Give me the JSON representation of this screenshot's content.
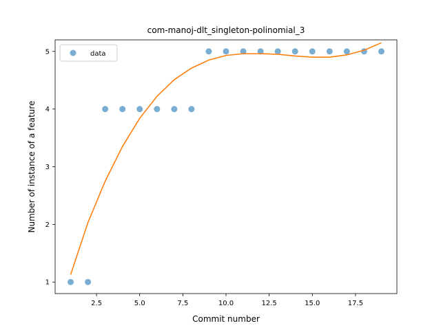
{
  "chart_data": {
    "type": "scatter",
    "title": "com-manoj-dlt_singleton-polinomial_3",
    "xlabel": "Commit number",
    "ylabel": "Number of instance of a feature",
    "xlim": [
      0.1,
      19.9
    ],
    "ylim": [
      0.8,
      5.2
    ],
    "xticks": [
      2.5,
      5.0,
      7.5,
      10.0,
      12.5,
      15.0,
      17.5
    ],
    "xtick_labels": [
      "2.5",
      "5.0",
      "7.5",
      "10.0",
      "12.5",
      "15.0",
      "17.5"
    ],
    "yticks": [
      1,
      2,
      3,
      4,
      5
    ],
    "ytick_labels": [
      "1",
      "2",
      "3",
      "4",
      "5"
    ],
    "grid": false,
    "legend": {
      "position": "top-left",
      "entries": [
        "data"
      ]
    },
    "series": [
      {
        "name": "data",
        "kind": "scatter",
        "color": "#1f77b4",
        "x": [
          1,
          2,
          3,
          4,
          5,
          6,
          7,
          8,
          9,
          10,
          11,
          12,
          13,
          14,
          15,
          16,
          17,
          18,
          19
        ],
        "y": [
          1,
          1,
          4,
          4,
          4,
          4,
          4,
          4,
          5,
          5,
          5,
          5,
          5,
          5,
          5,
          5,
          5,
          5,
          5
        ]
      },
      {
        "kind": "line",
        "color": "#ff7f0e",
        "x": [
          1,
          2,
          3,
          4,
          5,
          6,
          7,
          8,
          9,
          10,
          11,
          12,
          13,
          14,
          15,
          16,
          17,
          18,
          19
        ],
        "y": [
          1.13,
          2.03,
          2.75,
          3.35,
          3.84,
          4.22,
          4.51,
          4.71,
          4.85,
          4.93,
          4.96,
          4.96,
          4.95,
          4.92,
          4.9,
          4.9,
          4.94,
          5.02,
          5.15
        ]
      }
    ]
  }
}
